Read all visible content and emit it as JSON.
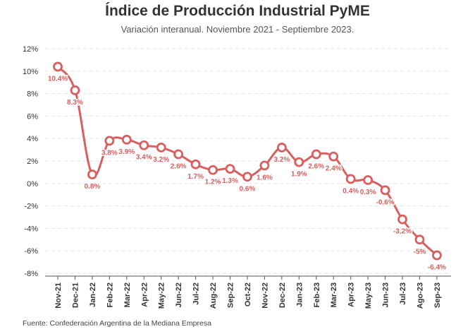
{
  "chart_data": {
    "type": "line",
    "title": "Índice de Producción Industrial PyME",
    "subtitle": "Variación interanual. Noviembre 2021 - Septiembre 2023.",
    "source": "Fuente: Confederación Argentina de la Mediana Empresa",
    "categories": [
      "Nov-21",
      "Dec-21",
      "Jan-22",
      "Feb-22",
      "Mar-22",
      "Apr-22",
      "May-22",
      "Jun-22",
      "Jul-22",
      "Aug-22",
      "Sep-22",
      "Oct-22",
      "Nov-22",
      "Dec-22",
      "Jan-23",
      "Feb-23",
      "Mar-23",
      "Apr-23",
      "May-23",
      "Jun-23",
      "Jul-23",
      "Ago-23",
      "Sep-23"
    ],
    "series": [
      {
        "values": [
          10.4,
          8.3,
          0.8,
          3.8,
          3.9,
          3.4,
          3.2,
          2.6,
          1.7,
          1.2,
          1.3,
          0.6,
          1.6,
          3.2,
          1.9,
          2.6,
          2.4,
          0.4,
          0.3,
          -0.6,
          -3.2,
          -5,
          -6.4
        ],
        "labels": [
          "10.4%",
          "8.3%",
          "0.8%",
          "3.8%",
          "3.9%",
          "3.4%",
          "3.2%",
          "2.6%",
          "1.7%",
          "1.2%",
          "1.3%",
          "0.6%",
          "1.6%",
          "3.2%",
          "1.9%",
          "2.6%",
          "2.4%",
          "0.4%",
          "0.3%",
          "-0.6%",
          "-3.2%",
          "-5%",
          "-6.4%"
        ]
      }
    ],
    "yticks": [
      12,
      10,
      8,
      6,
      4,
      2,
      0,
      -2,
      -4,
      -6,
      -8
    ],
    "ytick_labels": [
      "12%",
      "10%",
      "8%",
      "6%",
      "4%",
      "2%",
      "0%",
      "-2%",
      "-4%",
      "-6%",
      "-8%"
    ],
    "ylim": [
      -8,
      12
    ],
    "grid": true,
    "colors": {
      "line": "#d95f5f",
      "point_fill": "#ffffff",
      "grid": "#e3e3e3",
      "axis": "#555555"
    }
  }
}
